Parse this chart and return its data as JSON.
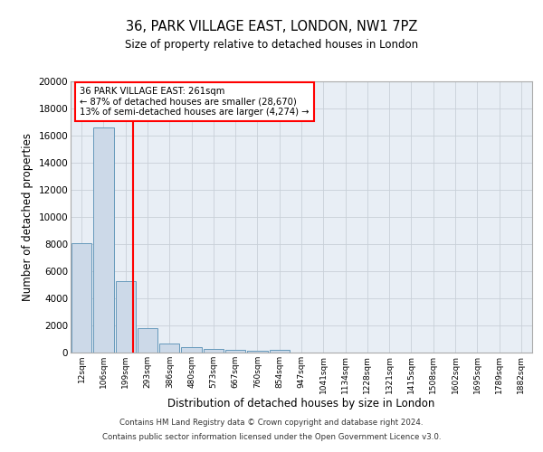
{
  "title1": "36, PARK VILLAGE EAST, LONDON, NW1 7PZ",
  "title2": "Size of property relative to detached houses in London",
  "xlabel": "Distribution of detached houses by size in London",
  "ylabel": "Number of detached properties",
  "footer1": "Contains HM Land Registry data © Crown copyright and database right 2024.",
  "footer2": "Contains public sector information licensed under the Open Government Licence v3.0.",
  "annotation_line1": "36 PARK VILLAGE EAST: 261sqm",
  "annotation_line2": "← 87% of detached houses are smaller (28,670)",
  "annotation_line3": "13% of semi-detached houses are larger (4,274) →",
  "bar_labels": [
    "12sqm",
    "106sqm",
    "199sqm",
    "293sqm",
    "386sqm",
    "480sqm",
    "573sqm",
    "667sqm",
    "760sqm",
    "854sqm",
    "947sqm",
    "1041sqm",
    "1134sqm",
    "1228sqm",
    "1321sqm",
    "1415sqm",
    "1508sqm",
    "1602sqm",
    "1695sqm",
    "1789sqm",
    "1882sqm"
  ],
  "bar_values": [
    8050,
    16600,
    5300,
    1800,
    700,
    380,
    250,
    180,
    160,
    200,
    0,
    0,
    0,
    0,
    0,
    0,
    0,
    0,
    0,
    0,
    0
  ],
  "bar_color": "#ccd9e8",
  "bar_edge_color": "#6699bb",
  "bg_color": "#e8eef5",
  "grid_color": "#c8d0d8",
  "red_line_x": 2.33,
  "ylim": [
    0,
    20000
  ],
  "yticks": [
    0,
    2000,
    4000,
    6000,
    8000,
    10000,
    12000,
    14000,
    16000,
    18000,
    20000
  ]
}
